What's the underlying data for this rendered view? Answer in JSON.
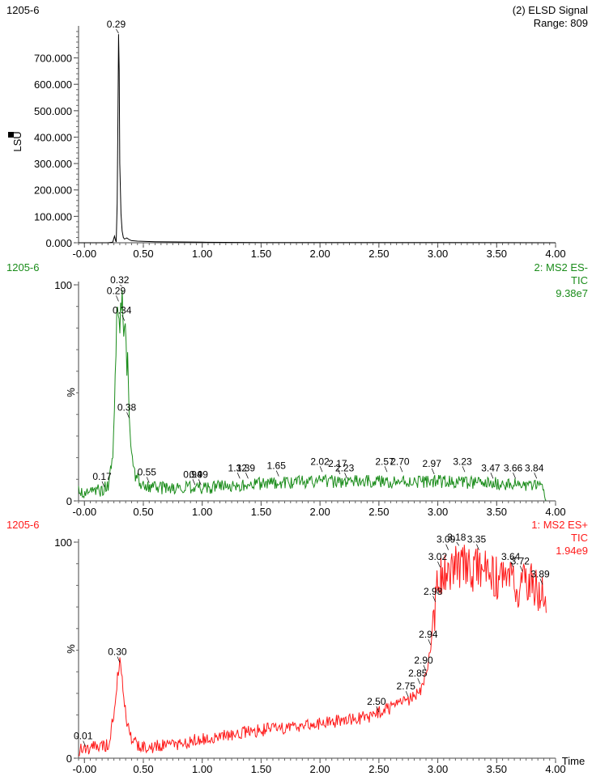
{
  "chart_data": [
    {
      "type": "line",
      "sample_label": "1205-6",
      "trace_title": "(2) ELSD Signal",
      "range_text": "Range: 809",
      "ylabel": "LSU",
      "color": "#000000",
      "xlim": [
        -0.05,
        4.0
      ],
      "ylim": [
        0,
        809
      ],
      "x_ticks": [
        "-0.00",
        "0.50",
        "1.00",
        "1.50",
        "2.00",
        "2.50",
        "3.00",
        "3.50",
        "4.00"
      ],
      "y_ticks": [
        "0.000",
        "100.000",
        "200.000",
        "300.000",
        "400.000",
        "500.000",
        "600.000",
        "700.000"
      ],
      "y_tick_values": [
        0,
        100,
        200,
        300,
        400,
        500,
        600,
        700
      ],
      "series": [
        {
          "x": [
            -0.05,
            0.2,
            0.24,
            0.255,
            0.265,
            0.27,
            0.278,
            0.285,
            0.29,
            0.295,
            0.3,
            0.31,
            0.32,
            0.33,
            0.34,
            0.36,
            0.38,
            0.4,
            0.45,
            0.6,
            0.8,
            1.0,
            1.5,
            2.0,
            3.0,
            4.0
          ],
          "y": [
            0,
            0,
            2,
            25,
            8,
            3,
            150,
            500,
            790,
            650,
            300,
            110,
            45,
            20,
            14,
            18,
            12,
            8,
            6,
            4,
            3,
            2,
            1,
            1,
            0.5,
            0
          ]
        }
      ],
      "peak_labels": [
        {
          "text": "0.29",
          "x": 0.29,
          "y": 790
        }
      ]
    },
    {
      "type": "line",
      "sample_label": "1205-6",
      "trace_title_lines": [
        "2: MS2 ES-",
        "TIC",
        "9.38e7"
      ],
      "ylabel": "%",
      "color": "#1a8c1a",
      "xlim": [
        -0.05,
        4.0
      ],
      "ylim": [
        0,
        100
      ],
      "x_ticks": [
        "-0.00",
        "0.50",
        "1.00",
        "1.50",
        "2.00",
        "2.50",
        "3.00",
        "3.50",
        "4.00"
      ],
      "y_ticks": [
        "0",
        "100"
      ],
      "y_tick_values": [
        0,
        100
      ],
      "noise_amplitude": 3,
      "baseline": [
        [
          -0.05,
          4
        ],
        [
          0.15,
          5
        ],
        [
          0.2,
          7
        ],
        [
          0.24,
          20
        ],
        [
          0.26,
          55
        ],
        [
          0.28,
          88
        ],
        [
          0.29,
          92
        ],
        [
          0.3,
          86
        ],
        [
          0.32,
          99
        ],
        [
          0.33,
          82
        ],
        [
          0.34,
          83
        ],
        [
          0.35,
          74
        ],
        [
          0.37,
          62
        ],
        [
          0.38,
          38
        ],
        [
          0.4,
          20
        ],
        [
          0.43,
          12
        ],
        [
          0.5,
          7
        ],
        [
          0.6,
          6
        ],
        [
          1.0,
          6
        ],
        [
          1.5,
          8
        ],
        [
          2.0,
          9
        ],
        [
          3.0,
          9
        ],
        [
          3.5,
          8
        ],
        [
          3.8,
          7
        ],
        [
          3.88,
          6
        ],
        [
          3.92,
          1
        ]
      ],
      "peak_labels": [
        {
          "text": "0.17",
          "x": 0.17,
          "y": 6
        },
        {
          "text": "0.29",
          "x": 0.29,
          "y": 92
        },
        {
          "text": "0.32",
          "x": 0.32,
          "y": 99
        },
        {
          "text": "0.34",
          "x": 0.34,
          "y": 83
        },
        {
          "text": "0.38",
          "x": 0.38,
          "y": 38
        },
        {
          "text": "0.55",
          "x": 0.55,
          "y": 8
        },
        {
          "text": "0.94",
          "x": 0.94,
          "y": 7
        },
        {
          "text": "0.99",
          "x": 0.99,
          "y": 7
        },
        {
          "text": "1.32",
          "x": 1.32,
          "y": 10
        },
        {
          "text": "1.39",
          "x": 1.39,
          "y": 10
        },
        {
          "text": "1.65",
          "x": 1.65,
          "y": 11
        },
        {
          "text": "2.02",
          "x": 2.02,
          "y": 13
        },
        {
          "text": "2.17",
          "x": 2.17,
          "y": 12
        },
        {
          "text": "2.23",
          "x": 2.23,
          "y": 10
        },
        {
          "text": "2.57",
          "x": 2.57,
          "y": 13
        },
        {
          "text": "2.70",
          "x": 2.7,
          "y": 13
        },
        {
          "text": "2.97",
          "x": 2.97,
          "y": 12
        },
        {
          "text": "3.23",
          "x": 3.23,
          "y": 13
        },
        {
          "text": "3.47",
          "x": 3.47,
          "y": 10
        },
        {
          "text": "3.66",
          "x": 3.66,
          "y": 10
        },
        {
          "text": "3.84",
          "x": 3.84,
          "y": 10
        }
      ]
    },
    {
      "type": "line",
      "sample_label": "1205-6",
      "trace_title_lines": [
        "1: MS2 ES+",
        "TIC",
        "1.94e9"
      ],
      "ylabel": "%",
      "xlabel": "Time",
      "color": "#ff1a1a",
      "xlim": [
        -0.05,
        4.0
      ],
      "ylim": [
        0,
        100
      ],
      "x_ticks": [
        "-0.00",
        "0.50",
        "1.00",
        "1.50",
        "2.00",
        "2.50",
        "3.00",
        "3.50",
        "4.00"
      ],
      "y_ticks": [
        "0",
        "100"
      ],
      "y_tick_values": [
        0,
        100
      ],
      "noise_amplitude": 3,
      "baseline": [
        [
          -0.05,
          4
        ],
        [
          0.1,
          5
        ],
        [
          0.2,
          6
        ],
        [
          0.25,
          20
        ],
        [
          0.28,
          38
        ],
        [
          0.3,
          44
        ],
        [
          0.32,
          37
        ],
        [
          0.35,
          20
        ],
        [
          0.4,
          8
        ],
        [
          0.5,
          5
        ],
        [
          0.75,
          6
        ],
        [
          1.0,
          9
        ],
        [
          1.5,
          13
        ],
        [
          2.0,
          16
        ],
        [
          2.4,
          19
        ],
        [
          2.6,
          23
        ],
        [
          2.75,
          27
        ],
        [
          2.85,
          31
        ],
        [
          2.9,
          38
        ],
        [
          2.94,
          50
        ],
        [
          2.96,
          62
        ],
        [
          2.98,
          70
        ],
        [
          3.0,
          80
        ],
        [
          3.02,
          86
        ],
        [
          3.1,
          88
        ],
        [
          3.2,
          89
        ],
        [
          3.4,
          86
        ],
        [
          3.6,
          80
        ],
        [
          3.8,
          80
        ],
        [
          3.88,
          78
        ],
        [
          3.92,
          76
        ]
      ],
      "peak_labels": [
        {
          "text": "0.01",
          "x": 0.01,
          "y": 5
        },
        {
          "text": "0.30",
          "x": 0.3,
          "y": 44
        },
        {
          "text": "2.50",
          "x": 2.5,
          "y": 21
        },
        {
          "text": "2.75",
          "x": 2.75,
          "y": 28
        },
        {
          "text": "2.85",
          "x": 2.85,
          "y": 34
        },
        {
          "text": "2.90",
          "x": 2.9,
          "y": 40
        },
        {
          "text": "2.94",
          "x": 2.94,
          "y": 52
        },
        {
          "text": "2.98",
          "x": 2.98,
          "y": 72
        },
        {
          "text": "3.02",
          "x": 3.02,
          "y": 88
        },
        {
          "text": "3.09",
          "x": 3.09,
          "y": 96
        },
        {
          "text": "3.18",
          "x": 3.18,
          "y": 98
        },
        {
          "text": "3.35",
          "x": 3.35,
          "y": 96
        },
        {
          "text": "3.64",
          "x": 3.64,
          "y": 88
        },
        {
          "text": "3.72",
          "x": 3.72,
          "y": 86
        },
        {
          "text": "3.89",
          "x": 3.89,
          "y": 80
        }
      ]
    }
  ]
}
